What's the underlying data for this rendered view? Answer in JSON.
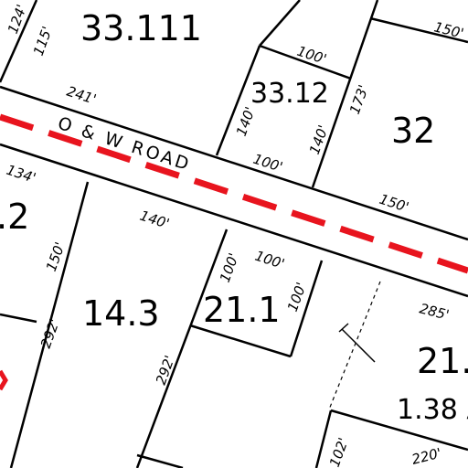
{
  "parcels": {
    "p33_111": "33.111",
    "p33_12": "33.12",
    "p32": "32",
    "p_2": ".2",
    "p14_3": "14.3",
    "p21_1": "21.1",
    "p21_partial": "21.",
    "acreage": "1.38 A"
  },
  "road": {
    "name": "O & W ROAD"
  },
  "dimensions": {
    "d124": "124'",
    "d115": "115'",
    "d241": "241'",
    "d100_top": "100'",
    "d150_top": "150'",
    "d140_a": "140'",
    "d173": "173'",
    "d140_b": "140'",
    "d100_mid": "100'",
    "d134": "134'",
    "d140_c": "140'",
    "d150_right": "150'",
    "d150_left": "150'",
    "d100_c": "100'",
    "d100_d": "100'",
    "d100_e": "100'",
    "d285": "285'",
    "d292_a": "292'",
    "d292_b": "292'",
    "d102": "102'",
    "d220": "220'"
  },
  "colors": {
    "road_centerline": "#e8141e",
    "lines": "#000000"
  }
}
